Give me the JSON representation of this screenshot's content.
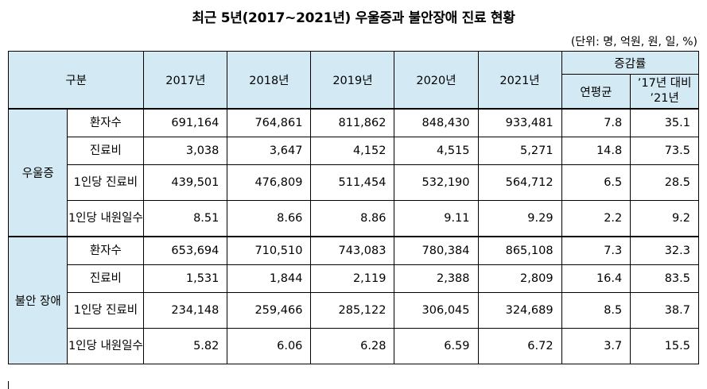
{
  "title": "최근 5년(2017~2021년) 우울증과 불안장애 진료 현황",
  "unit_note": "(단위: 명, 억원, 원, 일, %)",
  "header": {
    "category": "구분",
    "years": [
      "2017년",
      "2018년",
      "2019년",
      "2020년",
      "2021년"
    ],
    "growth": "증감률",
    "growth_sub": [
      "연평균",
      "’17년 대비 ’21년"
    ]
  },
  "groups": [
    {
      "name": "우울증",
      "rows": [
        {
          "item": "환자수",
          "values": [
            "691,164",
            "764,861",
            "811,862",
            "848,430",
            "933,481"
          ],
          "annual": "7.8",
          "vs17": "35.1"
        },
        {
          "item": "진료비",
          "values": [
            "3,038",
            "3,647",
            "4,152",
            "4,515",
            "5,271"
          ],
          "annual": "14.8",
          "vs17": "73.5"
        },
        {
          "item": "1인당 진료비",
          "values": [
            "439,501",
            "476,809",
            "511,454",
            "532,190",
            "564,712"
          ],
          "annual": "6.5",
          "vs17": "28.5"
        },
        {
          "item": "1인당 내원일수",
          "values": [
            "8.51",
            "8.66",
            "8.86",
            "9.11",
            "9.29"
          ],
          "annual": "2.2",
          "vs17": "9.2"
        }
      ]
    },
    {
      "name": "불안 장애",
      "rows": [
        {
          "item": "환자수",
          "values": [
            "653,694",
            "710,510",
            "743,083",
            "780,384",
            "865,108"
          ],
          "annual": "7.3",
          "vs17": "32.3"
        },
        {
          "item": "진료비",
          "values": [
            "1,531",
            "1,844",
            "2,119",
            "2,388",
            "2,809"
          ],
          "annual": "16.4",
          "vs17": "83.5"
        },
        {
          "item": "1인당 진료비",
          "values": [
            "234,148",
            "259,466",
            "285,122",
            "306,045",
            "324,689"
          ],
          "annual": "8.5",
          "vs17": "38.7"
        },
        {
          "item": "1인당 내원일수",
          "values": [
            "5.82",
            "6.06",
            "6.28",
            "6.59",
            "6.72"
          ],
          "annual": "3.7",
          "vs17": "15.5"
        }
      ]
    }
  ]
}
